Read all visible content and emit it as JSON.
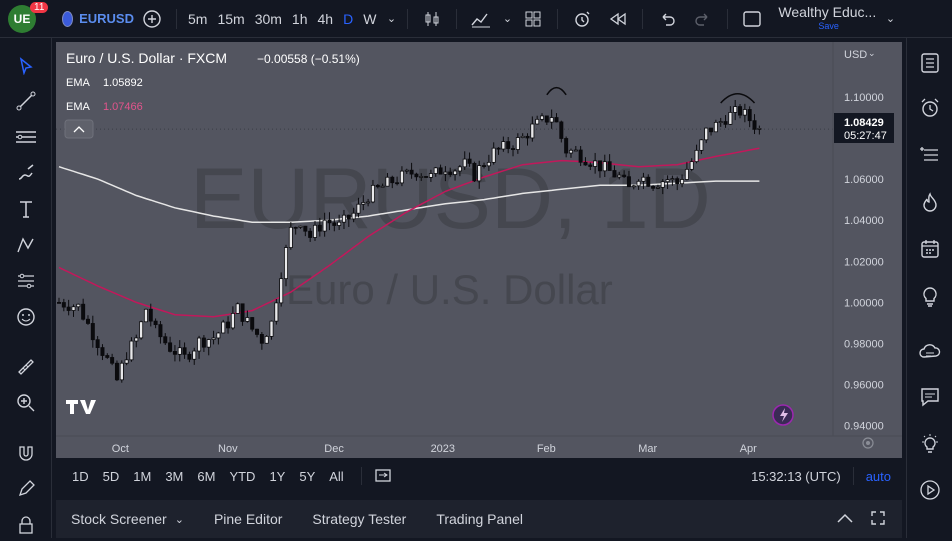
{
  "topbar": {
    "logo_text": "UE",
    "notif_count": "11",
    "symbol": "EURUSD",
    "intervals": [
      "5m",
      "15m",
      "30m",
      "1h",
      "4h",
      "D",
      "W"
    ],
    "active_interval": "D",
    "layout_name": "Wealthy Educ...",
    "save_label": "Save"
  },
  "legend": {
    "title": "Euro / U.S. Dollar · FXCM",
    "change": "−0.00558 (−0.51%)",
    "ema1_label": "EMA",
    "ema1_value": "1.05892",
    "ema2_label": "EMA",
    "ema2_value": "1.07466"
  },
  "watermark": {
    "symbol": "EURUSD, 1D",
    "name": "Euro / U.S. Dollar"
  },
  "price_axis": {
    "currency": "USD",
    "last_price": "1.08429",
    "countdown": "05:27:47"
  },
  "timebar": {
    "ranges": [
      "1D",
      "5D",
      "1M",
      "3M",
      "6M",
      "YTD",
      "1Y",
      "5Y",
      "All"
    ],
    "clock": "15:32:13 (UTC)",
    "auto_label": "auto"
  },
  "bottombar": {
    "tabs": [
      "Stock Screener",
      "Pine Editor",
      "Strategy Tester",
      "Trading Panel"
    ]
  },
  "colors": {
    "background": "#535560",
    "candle": "#0b0b0e",
    "ema_fast": "#c2185b",
    "ema_slow": "#e6e6e6",
    "accent": "#2962ff",
    "price_label": "#131722"
  },
  "chart_data": {
    "type": "candlestick",
    "title": "Euro / U.S. Dollar · FXCM",
    "timeframe": "1D",
    "x_ticks": [
      "Oct",
      "Nov",
      "Dec",
      "2023",
      "Feb",
      "Mar",
      "Apr"
    ],
    "y_ticks": [
      "1.10000",
      "1.08000",
      "1.06000",
      "1.04000",
      "1.02000",
      "1.00000",
      "0.98000",
      "0.96000",
      "0.94000"
    ],
    "ylim": [
      0.935,
      1.115
    ],
    "grid": false,
    "price_path": [
      [
        0,
        1.0
      ],
      [
        4,
        0.998
      ],
      [
        7,
        0.985
      ],
      [
        10,
        0.972
      ],
      [
        12,
        0.962
      ],
      [
        14,
        0.975
      ],
      [
        16,
        0.982
      ],
      [
        18,
        0.997
      ],
      [
        20,
        0.986
      ],
      [
        23,
        0.978
      ],
      [
        26,
        0.973
      ],
      [
        29,
        0.981
      ],
      [
        32,
        0.983
      ],
      [
        35,
        0.99
      ],
      [
        37,
        0.997
      ],
      [
        40,
        0.987
      ],
      [
        42,
        0.982
      ],
      [
        44,
        0.99
      ],
      [
        46,
        1.015
      ],
      [
        48,
        1.035
      ],
      [
        50,
        1.04
      ],
      [
        52,
        1.032
      ],
      [
        55,
        1.04
      ],
      [
        58,
        1.037
      ],
      [
        61,
        1.043
      ],
      [
        64,
        1.052
      ],
      [
        66,
        1.055
      ],
      [
        69,
        1.059
      ],
      [
        72,
        1.062
      ],
      [
        74,
        1.064
      ],
      [
        77,
        1.061
      ],
      [
        80,
        1.066
      ],
      [
        82,
        1.065
      ],
      [
        84,
        1.067
      ],
      [
        86,
        1.062
      ],
      [
        88,
        1.068
      ],
      [
        90,
        1.073
      ],
      [
        92,
        1.075
      ],
      [
        94,
        1.077
      ],
      [
        96,
        1.08
      ],
      [
        98,
        1.085
      ],
      [
        100,
        1.088
      ],
      [
        102,
        1.091
      ],
      [
        103,
        1.087
      ],
      [
        104,
        1.08
      ],
      [
        105,
        1.074
      ],
      [
        107,
        1.073
      ],
      [
        110,
        1.069
      ],
      [
        113,
        1.065
      ],
      [
        116,
        1.061
      ],
      [
        118,
        1.055
      ],
      [
        120,
        1.062
      ],
      [
        123,
        1.058
      ],
      [
        126,
        1.06
      ],
      [
        128,
        1.058
      ],
      [
        130,
        1.065
      ],
      [
        132,
        1.072
      ],
      [
        134,
        1.083
      ],
      [
        136,
        1.086
      ],
      [
        138,
        1.09
      ],
      [
        141,
        1.093
      ],
      [
        143,
        1.089
      ],
      [
        145,
        1.084
      ]
    ],
    "ema_fast_path": [
      [
        0,
        1.017
      ],
      [
        8,
        1.008
      ],
      [
        16,
        1.0
      ],
      [
        24,
        0.994
      ],
      [
        32,
        0.993
      ],
      [
        40,
        0.996
      ],
      [
        48,
        1.005
      ],
      [
        56,
        1.018
      ],
      [
        64,
        1.032
      ],
      [
        72,
        1.044
      ],
      [
        80,
        1.054
      ],
      [
        88,
        1.061
      ],
      [
        96,
        1.067
      ],
      [
        104,
        1.069
      ],
      [
        112,
        1.068
      ],
      [
        120,
        1.066
      ],
      [
        128,
        1.067
      ],
      [
        136,
        1.071
      ],
      [
        145,
        1.075
      ]
    ],
    "ema_slow_path": [
      [
        0,
        1.066
      ],
      [
        8,
        1.06
      ],
      [
        16,
        1.052
      ],
      [
        24,
        1.046
      ],
      [
        32,
        1.042
      ],
      [
        40,
        1.039
      ],
      [
        48,
        1.039
      ],
      [
        56,
        1.04
      ],
      [
        64,
        1.042
      ],
      [
        72,
        1.045
      ],
      [
        80,
        1.048
      ],
      [
        88,
        1.05
      ],
      [
        96,
        1.053
      ],
      [
        104,
        1.055
      ],
      [
        112,
        1.057
      ],
      [
        120,
        1.057
      ],
      [
        128,
        1.058
      ],
      [
        136,
        1.059
      ],
      [
        145,
        1.059
      ]
    ]
  }
}
